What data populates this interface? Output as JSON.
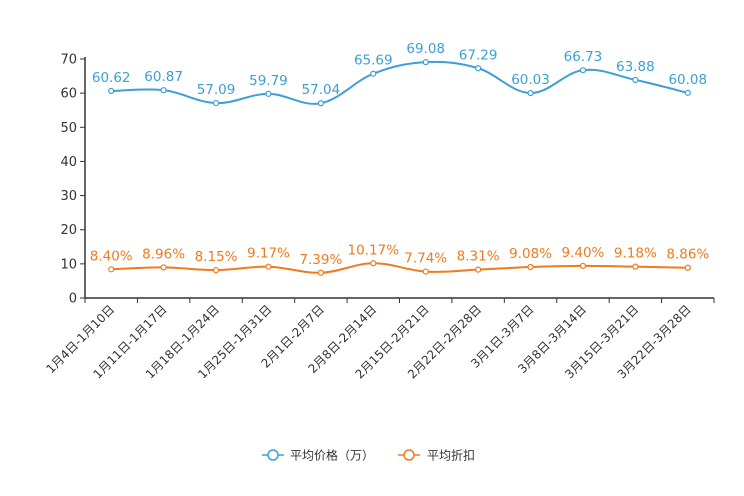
{
  "chart_data": {
    "type": "line",
    "categories": [
      "1月4日-1月10日",
      "1月11日-1月17日",
      "1月18日-1月24日",
      "1月25日-1月31日",
      "2月1日-2月7日",
      "2月8日-2月14日",
      "2月15日-2月21日",
      "2月22日-2月28日",
      "3月1日-3月7日",
      "3月8日-3月14日",
      "3月15日-3月21日",
      "3月22日-3月28日"
    ],
    "series": [
      {
        "name": "平均价格（万）",
        "color": "#3d9fd3",
        "values": [
          60.62,
          60.87,
          57.09,
          59.79,
          57.04,
          65.69,
          69.08,
          67.29,
          60.03,
          66.73,
          63.88,
          60.08
        ],
        "labels": [
          "60.62",
          "60.87",
          "57.09",
          "59.79",
          "57.04",
          "65.69",
          "69.08",
          "67.29",
          "60.03",
          "66.73",
          "63.88",
          "60.08"
        ]
      },
      {
        "name": "平均折扣",
        "color": "#f07a1c",
        "values": [
          8.4,
          8.96,
          8.15,
          9.17,
          7.39,
          10.17,
          7.74,
          8.31,
          9.08,
          9.4,
          9.18,
          8.86
        ],
        "labels": [
          "8.40%",
          "8.96%",
          "8.15%",
          "9.17%",
          "7.39%",
          "10.17%",
          "7.74%",
          "8.31%",
          "9.08%",
          "9.40%",
          "9.18%",
          "8.86%"
        ]
      }
    ],
    "yticks": [
      "0",
      "10",
      "20",
      "30",
      "40",
      "50",
      "60",
      "70"
    ],
    "ylim": [
      0,
      70
    ],
    "title": "",
    "xlabel": "",
    "ylabel": "",
    "grid": false,
    "legend_position": "bottom-center"
  }
}
